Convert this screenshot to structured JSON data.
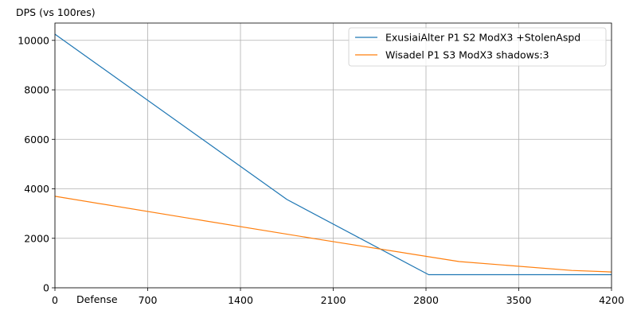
{
  "chart_data": {
    "type": "line",
    "title": "",
    "ylabel": "DPS (vs 100res)",
    "xlabel": "Defense",
    "xlim": [
      0,
      4200
    ],
    "ylim": [
      0,
      10700
    ],
    "xticks": [
      0,
      700,
      1400,
      2100,
      2800,
      3500,
      4200
    ],
    "yticks": [
      0,
      2000,
      4000,
      6000,
      8000,
      10000
    ],
    "grid": true,
    "legend_position": "top-right",
    "series": [
      {
        "name": "ExusiaiAlter P1 S2 ModX3 +StolenAspd",
        "color": "#1f77b4",
        "x": [
          0,
          1750,
          2820,
          4200
        ],
        "y": [
          10250,
          3570,
          530,
          530
        ]
      },
      {
        "name": "Wisadel P1 S3 ModX3 shadows:3",
        "color": "#ff7f0e",
        "x": [
          0,
          1000,
          2000,
          3050,
          3900,
          4200
        ],
        "y": [
          3700,
          2820,
          1950,
          1060,
          700,
          640
        ]
      }
    ]
  }
}
